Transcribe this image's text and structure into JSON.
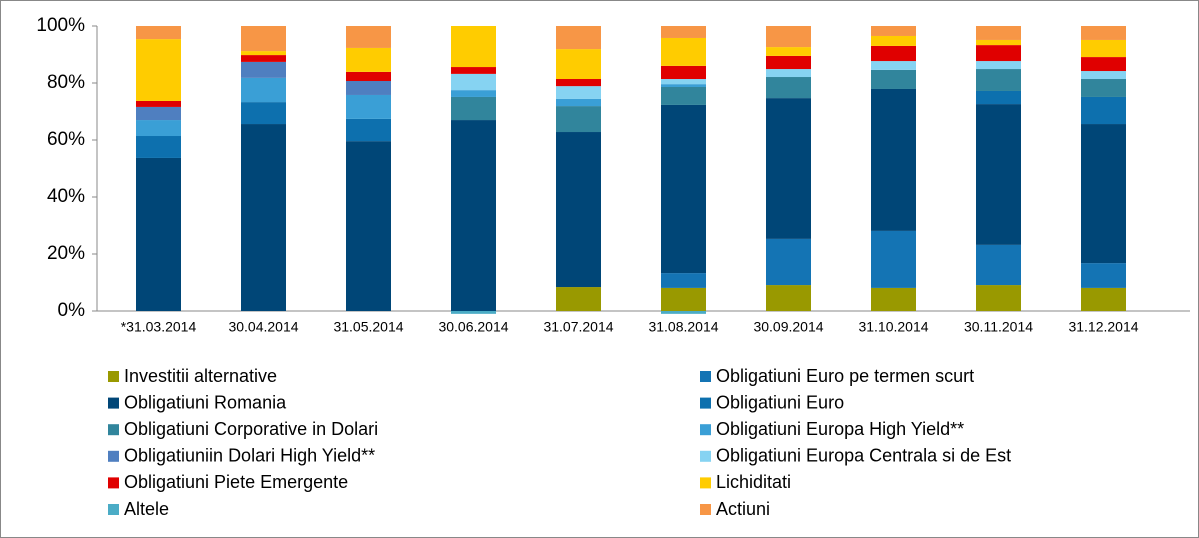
{
  "chart_data": {
    "type": "stacked_bar",
    "categories": [
      "*31.03.2014",
      "30.04.2014",
      "31.05.2014",
      "30.06.2014",
      "31.07.2014",
      "31.08.2014",
      "30.09.2014",
      "31.10.2014",
      "30.11.2014",
      "31.12.2014"
    ],
    "series": [
      {
        "name": "Investitii alternative",
        "color": "#999900",
        "values": [
          0,
          0,
          0,
          0,
          8.4,
          8.1,
          9.1,
          8.1,
          9.1,
          8.1
        ]
      },
      {
        "name": "Obligatiuni Euro pe termen scurt",
        "color": "#1474b4",
        "values": [
          0,
          0,
          0,
          0,
          0,
          5.2,
          16.2,
          20,
          14.1,
          8.7
        ]
      },
      {
        "name": "Obligatiuni Romania",
        "color": "#004677",
        "values": [
          53.7,
          65.6,
          59.6,
          67.0,
          54.4,
          59,
          49.4,
          49.8,
          49.4,
          48.8
        ]
      },
      {
        "name": "Obligatiuni Euro",
        "color": "#0d70ae",
        "values": [
          7.7,
          7.7,
          7.8,
          0,
          0,
          0,
          0,
          0,
          4.6,
          9.5
        ]
      },
      {
        "name": "Obligatiuni Corporative in Dolari",
        "color": "#31859c",
        "values": [
          0,
          0,
          0,
          8.1,
          9.1,
          6.3,
          7.4,
          6.7,
          7.7,
          6.3
        ]
      },
      {
        "name": "Obligatiuni Europa High Yield**",
        "color": "#3a9fd6",
        "values": [
          5.6,
          8.5,
          8.4,
          2.4,
          2.5,
          1.0,
          0,
          0,
          0,
          0
        ]
      },
      {
        "name": "Obligatiuniin Dolari High Yield**",
        "color": "#4f7fc0",
        "values": [
          4.6,
          5.6,
          4.9,
          0,
          0,
          0,
          0,
          0,
          0,
          0
        ]
      },
      {
        "name": "Obligatiuni Europa Centrala si de Est",
        "color": "#86d3f2",
        "values": [
          0,
          0,
          0,
          5.7,
          4.5,
          1.8,
          2.8,
          3.1,
          2.8,
          2.8
        ]
      },
      {
        "name": "Obligatiuni Piete Emergente",
        "color": "#e00000",
        "values": [
          2.1,
          2.4,
          3.2,
          2.4,
          2.5,
          4.6,
          4.6,
          5.3,
          5.6,
          4.9
        ]
      },
      {
        "name": "Lichiditati",
        "color": "#ffcc00",
        "values": [
          21.7,
          1.4,
          8.4,
          14.4,
          10.5,
          9.8,
          3.1,
          3.5,
          1.8,
          6.0
        ]
      },
      {
        "name": "Altele",
        "color": "#4bacc6",
        "values": [
          0,
          0,
          0,
          -1,
          0,
          -1,
          0,
          0,
          0,
          0
        ]
      },
      {
        "name": "Actiuni",
        "color": "#f79646",
        "values": [
          4.6,
          8.8,
          7.7,
          0,
          8.1,
          4.2,
          7.4,
          3.5,
          4.9,
          4.9
        ]
      }
    ],
    "ylim": [
      0,
      100
    ],
    "yticks": [
      {
        "value": 0,
        "label": "0%"
      },
      {
        "value": 20,
        "label": "20%"
      },
      {
        "value": 40,
        "label": "40%"
      },
      {
        "value": 60,
        "label": "60%"
      },
      {
        "value": 80,
        "label": "80%"
      },
      {
        "value": 100,
        "label": "100%"
      }
    ]
  }
}
